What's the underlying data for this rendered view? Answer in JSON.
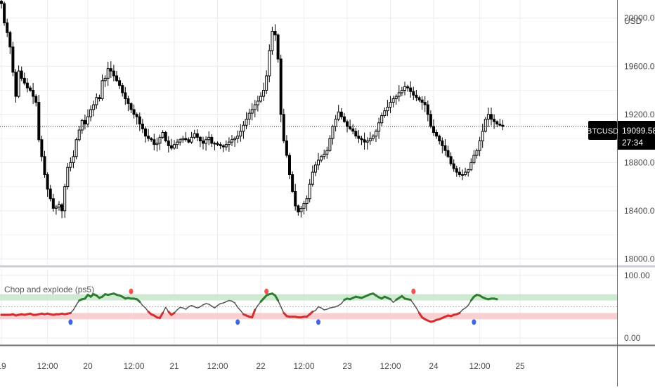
{
  "chart_data": [
    {
      "type": "candlestick",
      "title": "",
      "currency": "USD",
      "symbol": "BTCUSD",
      "last_price": "19099.58",
      "countdown": "27:34",
      "ylim": [
        17950,
        20150
      ],
      "y_ticks": [
        "20000.00",
        "19600.00",
        "19200.00",
        "18800.00",
        "18400.00",
        "18000.00"
      ],
      "y_tick_values": [
        20000,
        19600,
        19200,
        18800,
        18400,
        18000
      ],
      "current_price_value": 19100,
      "grid": true,
      "closes": [
        20120,
        19960,
        19880,
        19760,
        19550,
        19350,
        19560,
        19500,
        19460,
        19420,
        19400,
        19350,
        19300,
        18990,
        18850,
        18700,
        18580,
        18500,
        18420,
        18430,
        18450,
        18400,
        18600,
        18760,
        18800,
        18850,
        18990,
        19070,
        19150,
        19120,
        19180,
        19240,
        19280,
        19340,
        19330,
        19480,
        19500,
        19580,
        19560,
        19520,
        19480,
        19440,
        19380,
        19330,
        19290,
        19240,
        19200,
        19180,
        19120,
        19080,
        19020,
        19000,
        18990,
        18950,
        18960,
        19010,
        19050,
        18980,
        18940,
        18920,
        18950,
        18970,
        18990,
        19000,
        18990,
        18970,
        19010,
        19040,
        19010,
        18980,
        18960,
        18990,
        19010,
        18960,
        18960,
        18950,
        18940,
        18930,
        18950,
        18970,
        18990,
        19000,
        19020,
        19060,
        19110,
        19160,
        19210,
        19240,
        19280,
        19310,
        19350,
        19400,
        19520,
        19730,
        19890,
        19860,
        19660,
        19200,
        18980,
        18860,
        18700,
        18560,
        18440,
        18390,
        18420,
        18460,
        18500,
        18620,
        18720,
        18780,
        18820,
        18850,
        18870,
        18900,
        19000,
        19100,
        19160,
        19220,
        19180,
        19140,
        19100,
        19080,
        19060,
        19020,
        19000,
        18990,
        18970,
        18980,
        19000,
        19020,
        19060,
        19130,
        19190,
        19230,
        19260,
        19300,
        19330,
        19350,
        19380,
        19400,
        19430,
        19420,
        19390,
        19360,
        19340,
        19320,
        19300,
        19280,
        19200,
        19100,
        19050,
        19020,
        18980,
        18940,
        18900,
        18850,
        18790,
        18750,
        18720,
        18700,
        18700,
        18720,
        18740,
        18800,
        18860,
        18900,
        18980,
        19060,
        19160,
        19200,
        19160,
        19140,
        19120,
        19110,
        19100
      ]
    },
    {
      "type": "line",
      "title": "Chop and explode (ps5)",
      "ylim": [
        -10,
        110
      ],
      "y_ticks": [
        "100.00",
        "0.00"
      ],
      "y_tick_values": [
        100,
        0
      ],
      "upper_band": [
        60,
        70
      ],
      "lower_band": [
        30,
        40
      ],
      "band_colors": {
        "upper": "#c5e8c9",
        "lower": "#f9c7c9"
      },
      "line_colors": {
        "bull": "#2e7d32",
        "bear": "#d32f2f",
        "neutral": "#555555"
      },
      "values": [
        37,
        37,
        37,
        37,
        38,
        36,
        37,
        38,
        37,
        38,
        39,
        37,
        37,
        38,
        39,
        38,
        39,
        38,
        37,
        38,
        38,
        39,
        38,
        39,
        40,
        45,
        53,
        60,
        62,
        63,
        69,
        66,
        70,
        68,
        64,
        66,
        70,
        69,
        70,
        71,
        69,
        68,
        66,
        63,
        64,
        63,
        63,
        62,
        58,
        52,
        48,
        42,
        38,
        36,
        33,
        32,
        40,
        49,
        42,
        37,
        40,
        45,
        49,
        48,
        46,
        50,
        52,
        50,
        48,
        50,
        53,
        55,
        54,
        51,
        48,
        52,
        55,
        56,
        58,
        60,
        59,
        56,
        49,
        44,
        38,
        36,
        34,
        33,
        45,
        52,
        58,
        63,
        68,
        70,
        71,
        68,
        60,
        50,
        40,
        35,
        34,
        34,
        34,
        33,
        33,
        34,
        34,
        38,
        42,
        44,
        50,
        48,
        45,
        46,
        48,
        49,
        50,
        52,
        55,
        61,
        63,
        62,
        64,
        66,
        65,
        64,
        66,
        68,
        70,
        71,
        68,
        65,
        63,
        66,
        64,
        62,
        57,
        61,
        64,
        67,
        63,
        62,
        61,
        55,
        48,
        40,
        33,
        30,
        28,
        26,
        27,
        29,
        30,
        32,
        34,
        36,
        35,
        37,
        38,
        40,
        45,
        48,
        52,
        60,
        66,
        69,
        68,
        65,
        63,
        62,
        63,
        63,
        62
      ],
      "markers_top": [
        {
          "index": 45,
          "color": "#ef5350"
        },
        {
          "index": 92,
          "color": "#ef5350"
        },
        {
          "index": 143,
          "color": "#ef5350"
        }
      ],
      "markers_bottom": [
        {
          "index": 24,
          "color": "#3f66e0"
        },
        {
          "index": 82,
          "color": "#3f66e0"
        },
        {
          "index": 110,
          "color": "#3f66e0"
        },
        {
          "index": 164,
          "color": "#3f66e0"
        }
      ]
    }
  ],
  "time_axis": {
    "labels": [
      "19",
      "12:00",
      "20",
      "12:00",
      "21",
      "12:00",
      "22",
      "12:00",
      "23",
      "12:00",
      "24",
      "12:00",
      "25"
    ],
    "label_index": [
      0,
      16,
      30,
      46,
      60,
      75,
      90,
      105,
      120,
      135,
      150,
      166,
      180
    ]
  }
}
